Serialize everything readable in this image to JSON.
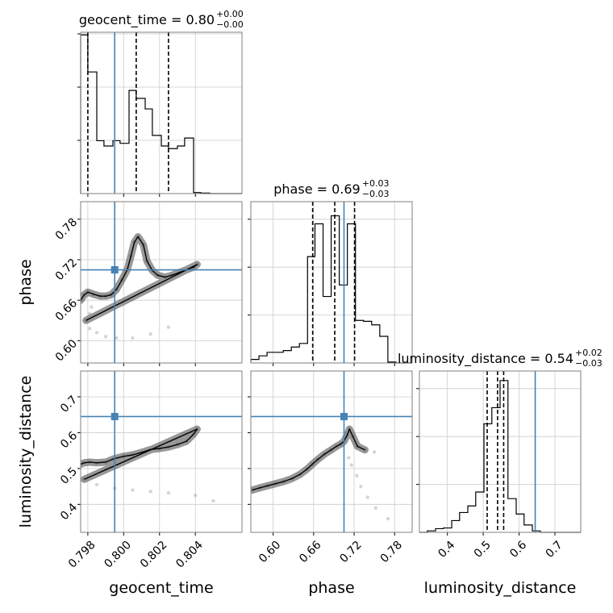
{
  "chart_data": {
    "type": "corner",
    "parameters": [
      "geocent_time",
      "phase",
      "luminosity_distance"
    ],
    "truth_color": "#4682b4",
    "truths": {
      "geocent_time": 0.7995,
      "phase": 0.705,
      "luminosity_distance": 0.645
    },
    "titles": [
      {
        "param": "geocent_time",
        "label": "geocent_time = 0.80",
        "sup": "+0.00",
        "sub": "−0.00"
      },
      {
        "param": "phase",
        "label": "phase = 0.69",
        "sup": "+0.03",
        "sub": "−0.03"
      },
      {
        "param": "luminosity_distance",
        "label": "luminosity_distance = 0.54",
        "sup": "+0.02",
        "sub": "−0.03"
      }
    ],
    "ranges": {
      "geocent_time": [
        0.7976,
        0.8066
      ],
      "phase": [
        0.567,
        0.806
      ],
      "luminosity_distance": [
        0.322,
        0.772
      ]
    },
    "ticks": {
      "geocent_time": {
        "values": [
          0.798,
          0.8,
          0.802,
          0.804
        ],
        "labels": [
          "0.798",
          "0.800",
          "0.802",
          "0.804"
        ]
      },
      "phase": {
        "values": [
          0.6,
          0.66,
          0.72,
          0.78
        ],
        "labels": [
          "0.60",
          "0.66",
          "0.72",
          "0.78"
        ]
      },
      "luminosity_distance": {
        "values": [
          0.4,
          0.5,
          0.6,
          0.7
        ],
        "labels": [
          "0.4",
          "0.5",
          "0.6",
          "0.7"
        ]
      },
      "luminosity_distance_y": {
        "values": [
          0.4,
          0.5,
          0.6,
          0.7
        ],
        "labels": [
          "0.4",
          "0.5",
          "0.6",
          "0.7"
        ]
      }
    },
    "quantiles": {
      "geocent_time": [
        0.798,
        0.8007,
        0.8025
      ],
      "phase": [
        0.6586,
        0.6913,
        0.7207
      ],
      "luminosity_distance": [
        0.511,
        0.54,
        0.557
      ]
    },
    "histograms": {
      "geocent_time": {
        "edges": [
          0.7976,
          0.798,
          0.7985,
          0.7989,
          0.7994,
          0.7998,
          0.8003,
          0.8007,
          0.8012,
          0.8016,
          0.8021,
          0.8025,
          0.803,
          0.8034,
          0.8039,
          0.8043,
          0.8048,
          0.8052,
          0.8057,
          0.8061,
          0.8066
        ],
        "counts": [
          3.0,
          2.3,
          1.0,
          0.9,
          1.0,
          0.95,
          1.95,
          1.8,
          1.6,
          1.1,
          0.9,
          0.85,
          0.9,
          1.05,
          0.02,
          0.01,
          0,
          0,
          0,
          0
        ],
        "ymax": 3.05
      },
      "phase": {
        "edges": [
          0.567,
          0.579,
          0.591,
          0.603,
          0.615,
          0.627,
          0.639,
          0.651,
          0.662,
          0.674,
          0.686,
          0.698,
          0.71,
          0.722,
          0.734,
          0.746,
          0.758,
          0.77,
          0.782,
          0.794,
          0.806
        ],
        "counts": [
          0.04,
          0.08,
          0.12,
          0.12,
          0.14,
          0.18,
          0.22,
          1.2,
          1.57,
          0.75,
          1.66,
          0.88,
          1.57,
          0.48,
          0.47,
          0.43,
          0.3,
          0.01,
          0,
          0
        ],
        "ymax": 1.82
      },
      "luminosity_distance": {
        "edges": [
          0.322,
          0.344,
          0.367,
          0.389,
          0.412,
          0.434,
          0.457,
          0.479,
          0.502,
          0.524,
          0.547,
          0.569,
          0.592,
          0.614,
          0.637,
          0.659,
          0.682,
          0.704,
          0.727,
          0.749,
          0.772
        ],
        "counts": [
          0,
          0.02,
          0.05,
          0.06,
          0.16,
          0.27,
          0.36,
          0.55,
          1.48,
          1.7,
          2.07,
          0.46,
          0.25,
          0.1,
          0.02,
          0,
          0,
          0,
          0,
          0
        ],
        "ymax": 2.2
      }
    },
    "scatter_sketch": {
      "geocent_time_vs_phase": [
        [
          0.7976,
          0.66
        ],
        [
          0.7978,
          0.668
        ],
        [
          0.798,
          0.672
        ],
        [
          0.7983,
          0.669
        ],
        [
          0.7987,
          0.666
        ],
        [
          0.799,
          0.666
        ],
        [
          0.7993,
          0.668
        ],
        [
          0.7996,
          0.676
        ],
        [
          0.7999,
          0.69
        ],
        [
          0.8002,
          0.705
        ],
        [
          0.8004,
          0.725
        ],
        [
          0.8006,
          0.746
        ],
        [
          0.8008,
          0.754
        ],
        [
          0.8011,
          0.742
        ],
        [
          0.8013,
          0.718
        ],
        [
          0.8016,
          0.704
        ],
        [
          0.8019,
          0.697
        ],
        [
          0.8023,
          0.694
        ],
        [
          0.8027,
          0.697
        ],
        [
          0.8031,
          0.701
        ],
        [
          0.8035,
          0.705
        ],
        [
          0.8039,
          0.709
        ],
        [
          0.8041,
          0.713
        ],
        [
          0.7979,
          0.63
        ],
        [
          0.7981,
          0.618
        ],
        [
          0.7985,
          0.612
        ],
        [
          0.799,
          0.606
        ],
        [
          0.7996,
          0.604
        ],
        [
          0.8005,
          0.604
        ],
        [
          0.8015,
          0.61
        ],
        [
          0.8025,
          0.62
        ],
        [
          0.7981,
          0.64
        ],
        [
          0.7982,
          0.65
        ]
      ],
      "geocent_time_vs_luminosity_distance": [
        [
          0.7976,
          0.512
        ],
        [
          0.7978,
          0.516
        ],
        [
          0.7981,
          0.518
        ],
        [
          0.7985,
          0.516
        ],
        [
          0.799,
          0.518
        ],
        [
          0.7995,
          0.528
        ],
        [
          0.8,
          0.534
        ],
        [
          0.8005,
          0.538
        ],
        [
          0.801,
          0.545
        ],
        [
          0.8015,
          0.553
        ],
        [
          0.802,
          0.556
        ],
        [
          0.8025,
          0.56
        ],
        [
          0.803,
          0.567
        ],
        [
          0.8035,
          0.576
        ],
        [
          0.8039,
          0.596
        ],
        [
          0.8041,
          0.61
        ],
        [
          0.7978,
          0.47
        ],
        [
          0.7985,
          0.455
        ],
        [
          0.7995,
          0.445
        ],
        [
          0.8005,
          0.44
        ],
        [
          0.8015,
          0.436
        ],
        [
          0.8025,
          0.432
        ],
        [
          0.804,
          0.425
        ],
        [
          0.805,
          0.41
        ]
      ],
      "phase_vs_luminosity_distance": [
        [
          0.569,
          0.44
        ],
        [
          0.58,
          0.446
        ],
        [
          0.592,
          0.452
        ],
        [
          0.604,
          0.458
        ],
        [
          0.616,
          0.464
        ],
        [
          0.628,
          0.472
        ],
        [
          0.64,
          0.484
        ],
        [
          0.65,
          0.498
        ],
        [
          0.658,
          0.512
        ],
        [
          0.666,
          0.525
        ],
        [
          0.676,
          0.54
        ],
        [
          0.686,
          0.552
        ],
        [
          0.694,
          0.562
        ],
        [
          0.7,
          0.568
        ],
        [
          0.705,
          0.576
        ],
        [
          0.71,
          0.594
        ],
        [
          0.713,
          0.61
        ],
        [
          0.718,
          0.59
        ],
        [
          0.725,
          0.562
        ],
        [
          0.736,
          0.552
        ],
        [
          0.75,
          0.546
        ],
        [
          0.712,
          0.53
        ],
        [
          0.716,
          0.51
        ],
        [
          0.724,
          0.48
        ],
        [
          0.73,
          0.45
        ],
        [
          0.74,
          0.42
        ],
        [
          0.752,
          0.39
        ],
        [
          0.77,
          0.36
        ]
      ]
    }
  }
}
